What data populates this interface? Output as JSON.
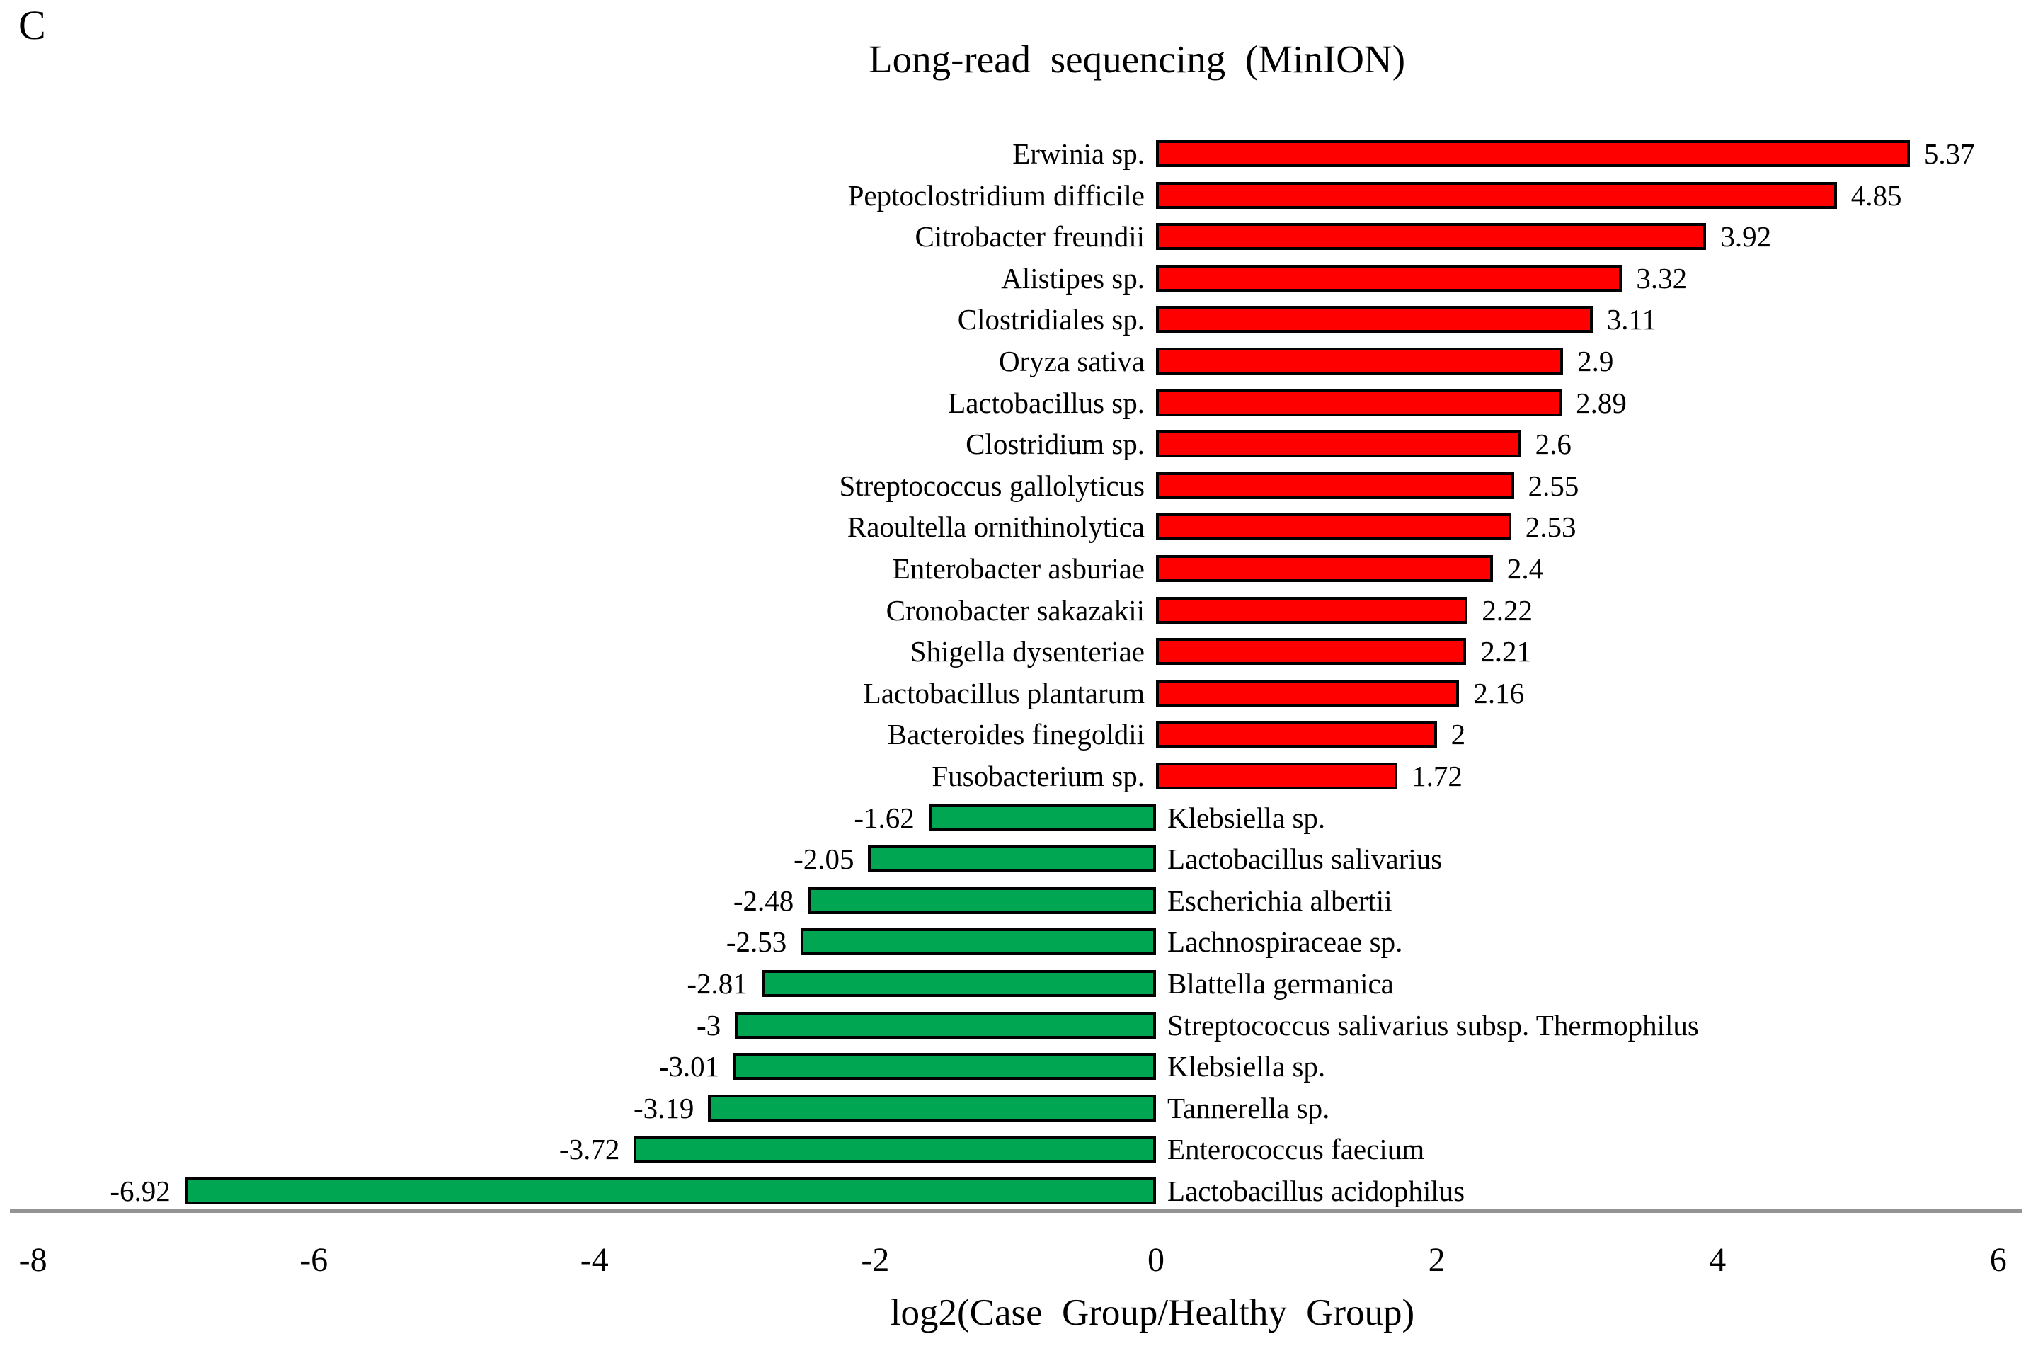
{
  "panel_label": "C",
  "chart_data": {
    "type": "bar",
    "orientation": "horizontal",
    "title": "Long-read sequencing (MinION)",
    "xlabel": "log2(Case Group/Healthy Group)",
    "xlim": [
      -8,
      6
    ],
    "x_ticks": [
      "-8",
      "-6",
      "-4",
      "-2",
      "0",
      "2",
      "4",
      "6"
    ],
    "grid": false,
    "legend": "none",
    "colors": {
      "positive_bar": "#FF0000",
      "negative_bar": "#00A651",
      "bar_border": "#000000",
      "axis_line": "#939393",
      "text": "#000000"
    },
    "bars": [
      {
        "label": "Erwinia sp.",
        "value": 5.37,
        "value_label": "5.37"
      },
      {
        "label": "Peptoclostridium difficile",
        "value": 4.85,
        "value_label": "4.85"
      },
      {
        "label": "Citrobacter freundii",
        "value": 3.92,
        "value_label": "3.92"
      },
      {
        "label": "Alistipes sp.",
        "value": 3.32,
        "value_label": "3.32"
      },
      {
        "label": "Clostridiales sp.",
        "value": 3.11,
        "value_label": "3.11"
      },
      {
        "label": "Oryza sativa",
        "value": 2.9,
        "value_label": "2.9"
      },
      {
        "label": "Lactobacillus sp.",
        "value": 2.89,
        "value_label": "2.89"
      },
      {
        "label": "Clostridium sp.",
        "value": 2.6,
        "value_label": "2.6"
      },
      {
        "label": "Streptococcus gallolyticus",
        "value": 2.55,
        "value_label": "2.55"
      },
      {
        "label": "Raoultella ornithinolytica",
        "value": 2.53,
        "value_label": "2.53"
      },
      {
        "label": "Enterobacter asburiae",
        "value": 2.4,
        "value_label": "2.4"
      },
      {
        "label": "Cronobacter sakazakii",
        "value": 2.22,
        "value_label": "2.22"
      },
      {
        "label": "Shigella dysenteriae",
        "value": 2.21,
        "value_label": "2.21"
      },
      {
        "label": "Lactobacillus plantarum",
        "value": 2.16,
        "value_label": "2.16"
      },
      {
        "label": "Bacteroides finegoldii",
        "value": 2,
        "value_label": "2"
      },
      {
        "label": "Fusobacterium sp.",
        "value": 1.72,
        "value_label": "1.72"
      },
      {
        "label": "Klebsiella sp.",
        "value": -1.62,
        "value_label": "-1.62"
      },
      {
        "label": "Lactobacillus salivarius",
        "value": -2.05,
        "value_label": "-2.05"
      },
      {
        "label": "Escherichia albertii",
        "value": -2.48,
        "value_label": "-2.48"
      },
      {
        "label": "Lachnospiraceae sp.",
        "value": -2.53,
        "value_label": "-2.53"
      },
      {
        "label": "Blattella germanica",
        "value": -2.81,
        "value_label": "-2.81"
      },
      {
        "label": "Streptococcus salivarius subsp. Thermophilus",
        "value": -3,
        "value_label": "-3"
      },
      {
        "label": "Klebsiella sp.",
        "value": -3.01,
        "value_label": "-3.01"
      },
      {
        "label": "Tannerella sp.",
        "value": -3.19,
        "value_label": "-3.19"
      },
      {
        "label": "Enterococcus faecium",
        "value": -3.72,
        "value_label": "-3.72"
      },
      {
        "label": "Lactobacillus acidophilus",
        "value": -6.92,
        "value_label": "-6.92"
      }
    ]
  }
}
